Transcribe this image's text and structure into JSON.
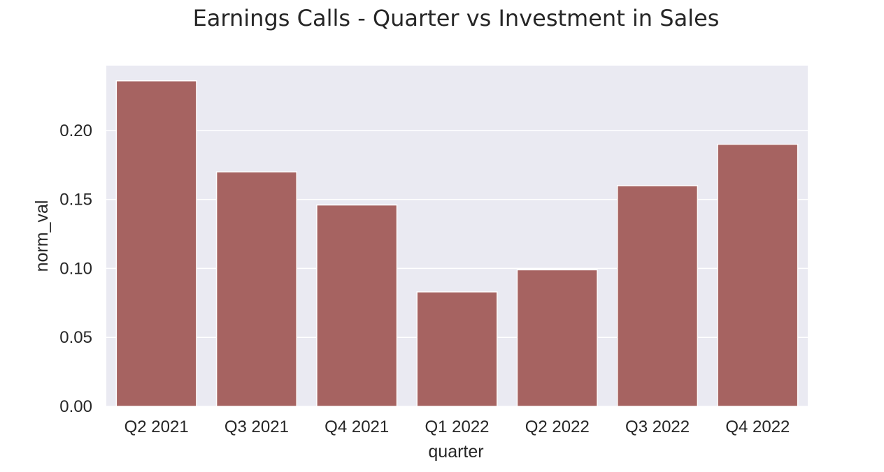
{
  "chart_data": {
    "type": "bar",
    "title": "Earnings Calls - Quarter vs Investment in Sales",
    "xlabel": "quarter",
    "ylabel": "norm_val",
    "categories": [
      "Q2 2021",
      "Q3 2021",
      "Q4 2021",
      "Q1 2022",
      "Q2 2022",
      "Q3 2022",
      "Q4 2022"
    ],
    "values": [
      0.236,
      0.17,
      0.146,
      0.083,
      0.099,
      0.16,
      0.19
    ],
    "ylim": [
      0,
      0.247
    ],
    "yticks": [
      0.0,
      0.05,
      0.1,
      0.15,
      0.2
    ],
    "ytick_labels": [
      "0.00",
      "0.05",
      "0.10",
      "0.15",
      "0.20"
    ],
    "grid": true,
    "colors": {
      "bar": "#a66361",
      "plot_background": "#eaeaf2",
      "grid": "#ffffff",
      "text": "#262626"
    }
  }
}
